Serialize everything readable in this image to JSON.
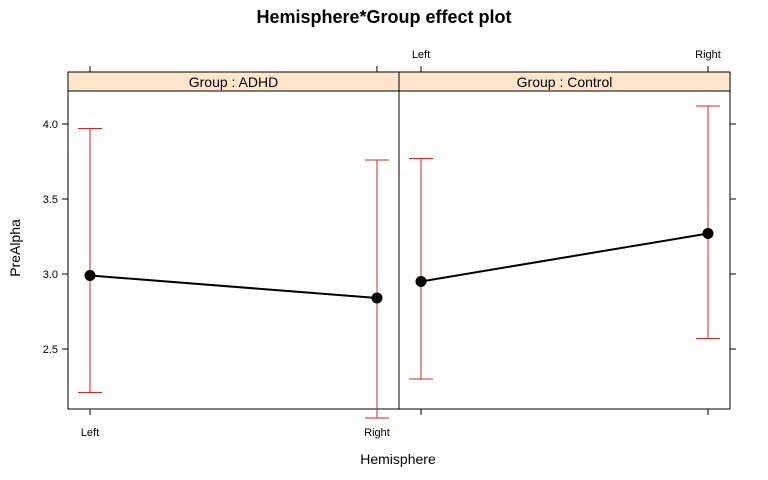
{
  "chart_data": {
    "type": "line",
    "title": "Hemisphere*Group effect plot",
    "xlabel": "Hemisphere",
    "ylabel": "PreAlpha",
    "categories": [
      "Left",
      "Right"
    ],
    "yticks": [
      "2.5",
      "3.0",
      "3.5",
      "4.0"
    ],
    "ylim": [
      2.1,
      4.22
    ],
    "colors": {
      "line": "#000000",
      "error_bar": "#cc2b2b",
      "strip_bg": "#ffe5cc",
      "frame": "#000000"
    },
    "panels": [
      {
        "strip": "Group : ADHD",
        "values": [
          2.99,
          2.84
        ],
        "lower": [
          2.21,
          2.04
        ],
        "upper": [
          3.97,
          3.76
        ]
      },
      {
        "strip": "Group : Control",
        "values": [
          2.95,
          3.27
        ],
        "lower": [
          2.3,
          2.57
        ],
        "upper": [
          3.77,
          4.12
        ]
      }
    ]
  }
}
